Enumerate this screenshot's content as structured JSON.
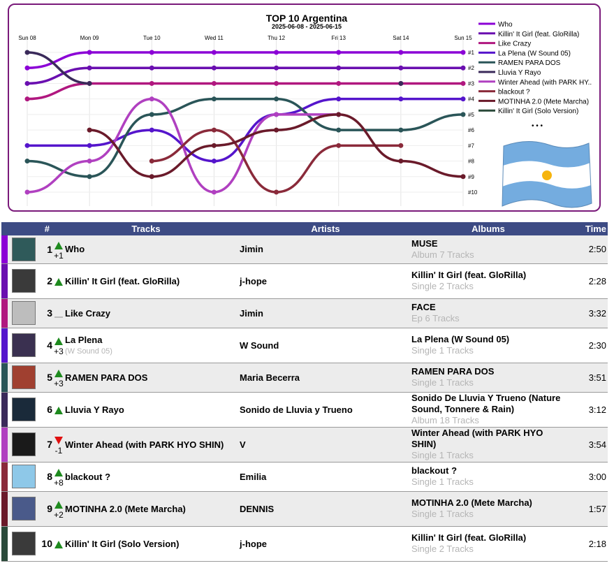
{
  "chart_data": {
    "type": "line",
    "title": "TOP 10 Argentina",
    "subtitle": "2025-06-08 - 2025-06-15",
    "categories": [
      "Sun 08",
      "Mon 09",
      "Tue 10",
      "Wed 11",
      "Thu 12",
      "Fri 13",
      "Sat 14",
      "Sun 15"
    ],
    "rank_labels": [
      "#1",
      "#2",
      "#3",
      "#4",
      "#5",
      "#6",
      "#7",
      "#8",
      "#9",
      "#10"
    ],
    "ylim": [
      0.5,
      10.5
    ],
    "y_reversed": true,
    "legend_position": "right",
    "legend_more": "• • •",
    "series": [
      {
        "name": "Who",
        "color": "#8b00d6",
        "values": [
          2,
          1,
          1,
          1,
          1,
          1,
          1,
          1
        ]
      },
      {
        "name": "Killin' It Girl (feat. GloRilla)",
        "color": "#6a0fb0",
        "values": [
          3,
          2,
          2,
          2,
          2,
          2,
          2,
          2
        ]
      },
      {
        "name": "Like Crazy",
        "color": "#b0177f",
        "values": [
          4,
          3,
          3,
          3,
          3,
          3,
          3,
          3
        ]
      },
      {
        "name": "La Plena (W Sound 05)",
        "color": "#5515cc",
        "values": [
          7,
          7,
          6,
          8,
          5,
          4,
          4,
          4
        ]
      },
      {
        "name": "RAMEN PARA DOS",
        "color": "#2a5558",
        "values": [
          8,
          9,
          5,
          4,
          4,
          6,
          6,
          5
        ]
      },
      {
        "name": "Lluvia Y Rayo",
        "color": "#3a2a5a",
        "values": [
          1,
          3,
          null,
          null,
          null,
          null,
          3,
          null
        ]
      },
      {
        "name": "Winter Ahead (with PARK HYO SHIN)",
        "color": "#b040c0",
        "values": [
          10,
          8,
          4,
          10,
          5,
          5,
          null,
          null
        ]
      },
      {
        "name": "blackout ?",
        "color": "#8a2a3a",
        "values": [
          null,
          null,
          8,
          6,
          10,
          7,
          7,
          null
        ]
      },
      {
        "name": "MOTINHA 2.0 (Mete Marcha)",
        "color": "#6a1a2a",
        "values": [
          null,
          6,
          9,
          7,
          6,
          5,
          8,
          9
        ]
      },
      {
        "name": "Killin' It Girl (Solo Version)",
        "color": "#2a4a3a",
        "values": [
          null,
          null,
          null,
          null,
          null,
          null,
          null,
          null
        ]
      }
    ]
  },
  "table": {
    "headers": {
      "rank": "#",
      "tracks": "Tracks",
      "artists": "Artists",
      "albums": "Albums",
      "time": "Time"
    },
    "rows": [
      {
        "rank": "1",
        "change": "up",
        "change_num": "+1",
        "track": "Who",
        "track_sub": "",
        "artist": "Jimin",
        "album": "MUSE",
        "album_sub": "Album 7 Tracks",
        "time": "2:50",
        "bar": "#8b00d6",
        "thumb": "#2f5a5a"
      },
      {
        "rank": "2",
        "change": "up",
        "change_num": "",
        "track": "Killin' It Girl (feat. GloRilla)",
        "track_sub": "",
        "artist": "j-hope",
        "album": "Killin' It Girl (feat. GloRilla)",
        "album_sub": "Single 2 Tracks",
        "time": "2:28",
        "bar": "#6a0fb0",
        "thumb": "#3a3a3a"
      },
      {
        "rank": "3",
        "change": "same",
        "change_num": "",
        "track": "Like Crazy",
        "track_sub": "",
        "artist": "Jimin",
        "album": "FACE",
        "album_sub": "Ep 6 Tracks",
        "time": "3:32",
        "bar": "#b0177f",
        "thumb": "#bdbdbd"
      },
      {
        "rank": "4",
        "change": "up",
        "change_num": "+3",
        "track": "La Plena",
        "track_sub": "(W Sound 05)",
        "artist": "W Sound",
        "album": "La Plena (W Sound 05)",
        "album_sub": "Single 1 Tracks",
        "time": "2:30",
        "bar": "#5515cc",
        "thumb": "#3a3050"
      },
      {
        "rank": "5",
        "change": "up",
        "change_num": "+3",
        "track": "RAMEN PARA DOS",
        "track_sub": "",
        "artist": "Maria Becerra",
        "album": "RAMEN PARA DOS",
        "album_sub": "Single 1 Tracks",
        "time": "3:51",
        "bar": "#2a5558",
        "thumb": "#a04030"
      },
      {
        "rank": "6",
        "change": "up",
        "change_num": "",
        "track": "Lluvia Y Rayo",
        "track_sub": "",
        "artist": "Sonido de Lluvia y Trueno",
        "album": "Sonido De Lluvia Y Trueno (Nature Sound, Tonnere & Rain)",
        "album_sub": "Album 18 Tracks",
        "time": "3:12",
        "bar": "#3a2a5a",
        "thumb": "#1a2a3a"
      },
      {
        "rank": "7",
        "change": "down",
        "change_num": "-1",
        "track": "Winter Ahead (with PARK HYO SHIN)",
        "track_sub": "",
        "artist": "V",
        "album": "Winter Ahead (with PARK HYO SHIN)",
        "album_sub": "Single 1 Tracks",
        "time": "3:54",
        "bar": "#b040c0",
        "thumb": "#1a1a1a"
      },
      {
        "rank": "8",
        "change": "up",
        "change_num": "+8",
        "track": "blackout ?",
        "track_sub": "",
        "artist": "Emilia",
        "album": "blackout ?",
        "album_sub": "Single 1 Tracks",
        "time": "3:00",
        "bar": "#8a2a3a",
        "thumb": "#8ec8e8"
      },
      {
        "rank": "9",
        "change": "up",
        "change_num": "+2",
        "track": "MOTINHA 2.0 (Mete Marcha)",
        "track_sub": "",
        "artist": "DENNIS",
        "album": "MOTINHA 2.0 (Mete Marcha)",
        "album_sub": "Single 1 Tracks",
        "time": "1:57",
        "bar": "#6a1a2a",
        "thumb": "#4a5a8a"
      },
      {
        "rank": "10",
        "change": "up",
        "change_num": "",
        "track": "Killin' It Girl (Solo Version)",
        "track_sub": "",
        "artist": "j-hope",
        "album": "Killin' It Girl (feat. GloRilla)",
        "album_sub": "Single 2 Tracks",
        "time": "2:18",
        "bar": "#2a4a3a",
        "thumb": "#3a3a3a"
      }
    ]
  }
}
